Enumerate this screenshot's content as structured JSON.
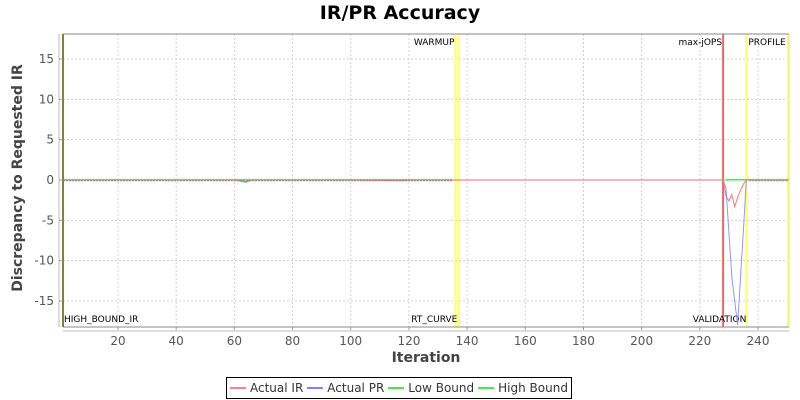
{
  "chart_data": {
    "type": "line",
    "title": "IR/PR Accuracy",
    "xlabel": "Iteration",
    "ylabel": "Discrepancy to Requested IR",
    "xlim": [
      1,
      250
    ],
    "ylim": [
      -18,
      18
    ],
    "x_ticks": [
      20,
      40,
      60,
      80,
      100,
      120,
      140,
      160,
      180,
      200,
      220,
      240
    ],
    "y_ticks": [
      15,
      10,
      5,
      0,
      -5,
      -10,
      -15
    ],
    "grid": true,
    "legend_position": "bottom",
    "series": [
      {
        "name": "Actual IR",
        "color": "#ff6666",
        "x": [
          1,
          20,
          40,
          60,
          64,
          66,
          80,
          100,
          118,
          120,
          134,
          137,
          228,
          229,
          230,
          231,
          232,
          233,
          234,
          235,
          236,
          250
        ],
        "y": [
          0,
          0,
          0,
          0,
          -0.2,
          0,
          0,
          0,
          -0.1,
          0,
          0,
          0,
          0,
          -2.0,
          -2.6,
          -1.8,
          -3.3,
          -2.2,
          -1.3,
          -0.5,
          0,
          0
        ]
      },
      {
        "name": "Actual PR",
        "color": "#8888ff",
        "x": [
          1,
          20,
          40,
          60,
          64,
          66,
          80,
          100,
          120,
          134,
          137,
          228,
          229,
          231,
          233,
          235,
          236,
          250
        ],
        "y": [
          0,
          0,
          0,
          0,
          -0.3,
          0,
          0,
          0,
          0,
          0,
          0,
          0,
          -1.0,
          -12.0,
          -18.0,
          -6.0,
          0,
          0
        ]
      },
      {
        "name": "Low Bound",
        "color": "#44ee44",
        "x": [
          1,
          136,
          229,
          250
        ],
        "y": [
          0,
          0,
          0,
          0
        ]
      },
      {
        "name": "High Bound",
        "color": "#44ee44",
        "x": [
          1,
          136,
          229,
          250
        ],
        "y": [
          0,
          0,
          0,
          0
        ]
      }
    ],
    "markers": [
      {
        "label": "HIGH_BOUND_IR",
        "x": 1,
        "color": "#808040",
        "position": "bottom"
      },
      {
        "label": "WARMUP",
        "x": 136,
        "color": "#ffff66",
        "position": "top"
      },
      {
        "label": "RT_CURVE",
        "x": 137,
        "color": "#ffff66",
        "position": "bottom"
      },
      {
        "label": "max-jOPS",
        "x": 228,
        "color": "#ee6666",
        "position": "top"
      },
      {
        "label": "VALIDATION",
        "x": 236,
        "color": "#ffff66",
        "position": "bottom"
      },
      {
        "label": "PROFILE",
        "x": 236,
        "color": "#ffff66",
        "position": "top"
      },
      {
        "label": "",
        "x": 250,
        "color": "#ffff66",
        "position": "top"
      }
    ]
  },
  "legend": {
    "items": [
      {
        "label": "Actual IR",
        "color": "#ff8080"
      },
      {
        "label": "Actual PR",
        "color": "#8080ff"
      },
      {
        "label": "Low Bound",
        "color": "#44ee44"
      },
      {
        "label": "High Bound",
        "color": "#44ee44"
      }
    ]
  }
}
